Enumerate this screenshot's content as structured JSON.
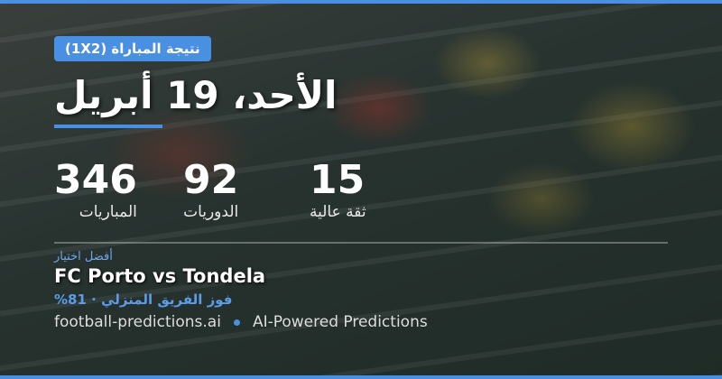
{
  "badge": "نتيجة المباراة (1X2)",
  "title": "الأحد، 19 أبريل",
  "stats": [
    {
      "value": "346",
      "label": "المباريات"
    },
    {
      "value": "92",
      "label": "الدوريات"
    },
    {
      "value": "15",
      "label": "ثقة عالية"
    }
  ],
  "best_pick": {
    "label": "أفضل اختيار",
    "match": "FC Porto vs Tondela",
    "prediction": "فوز الفريق المنزلي · 81%"
  },
  "footer": {
    "site": "football-predictions.ai",
    "tagline": "AI-Powered Predictions"
  },
  "colors": {
    "accent": "#4a90e2"
  }
}
